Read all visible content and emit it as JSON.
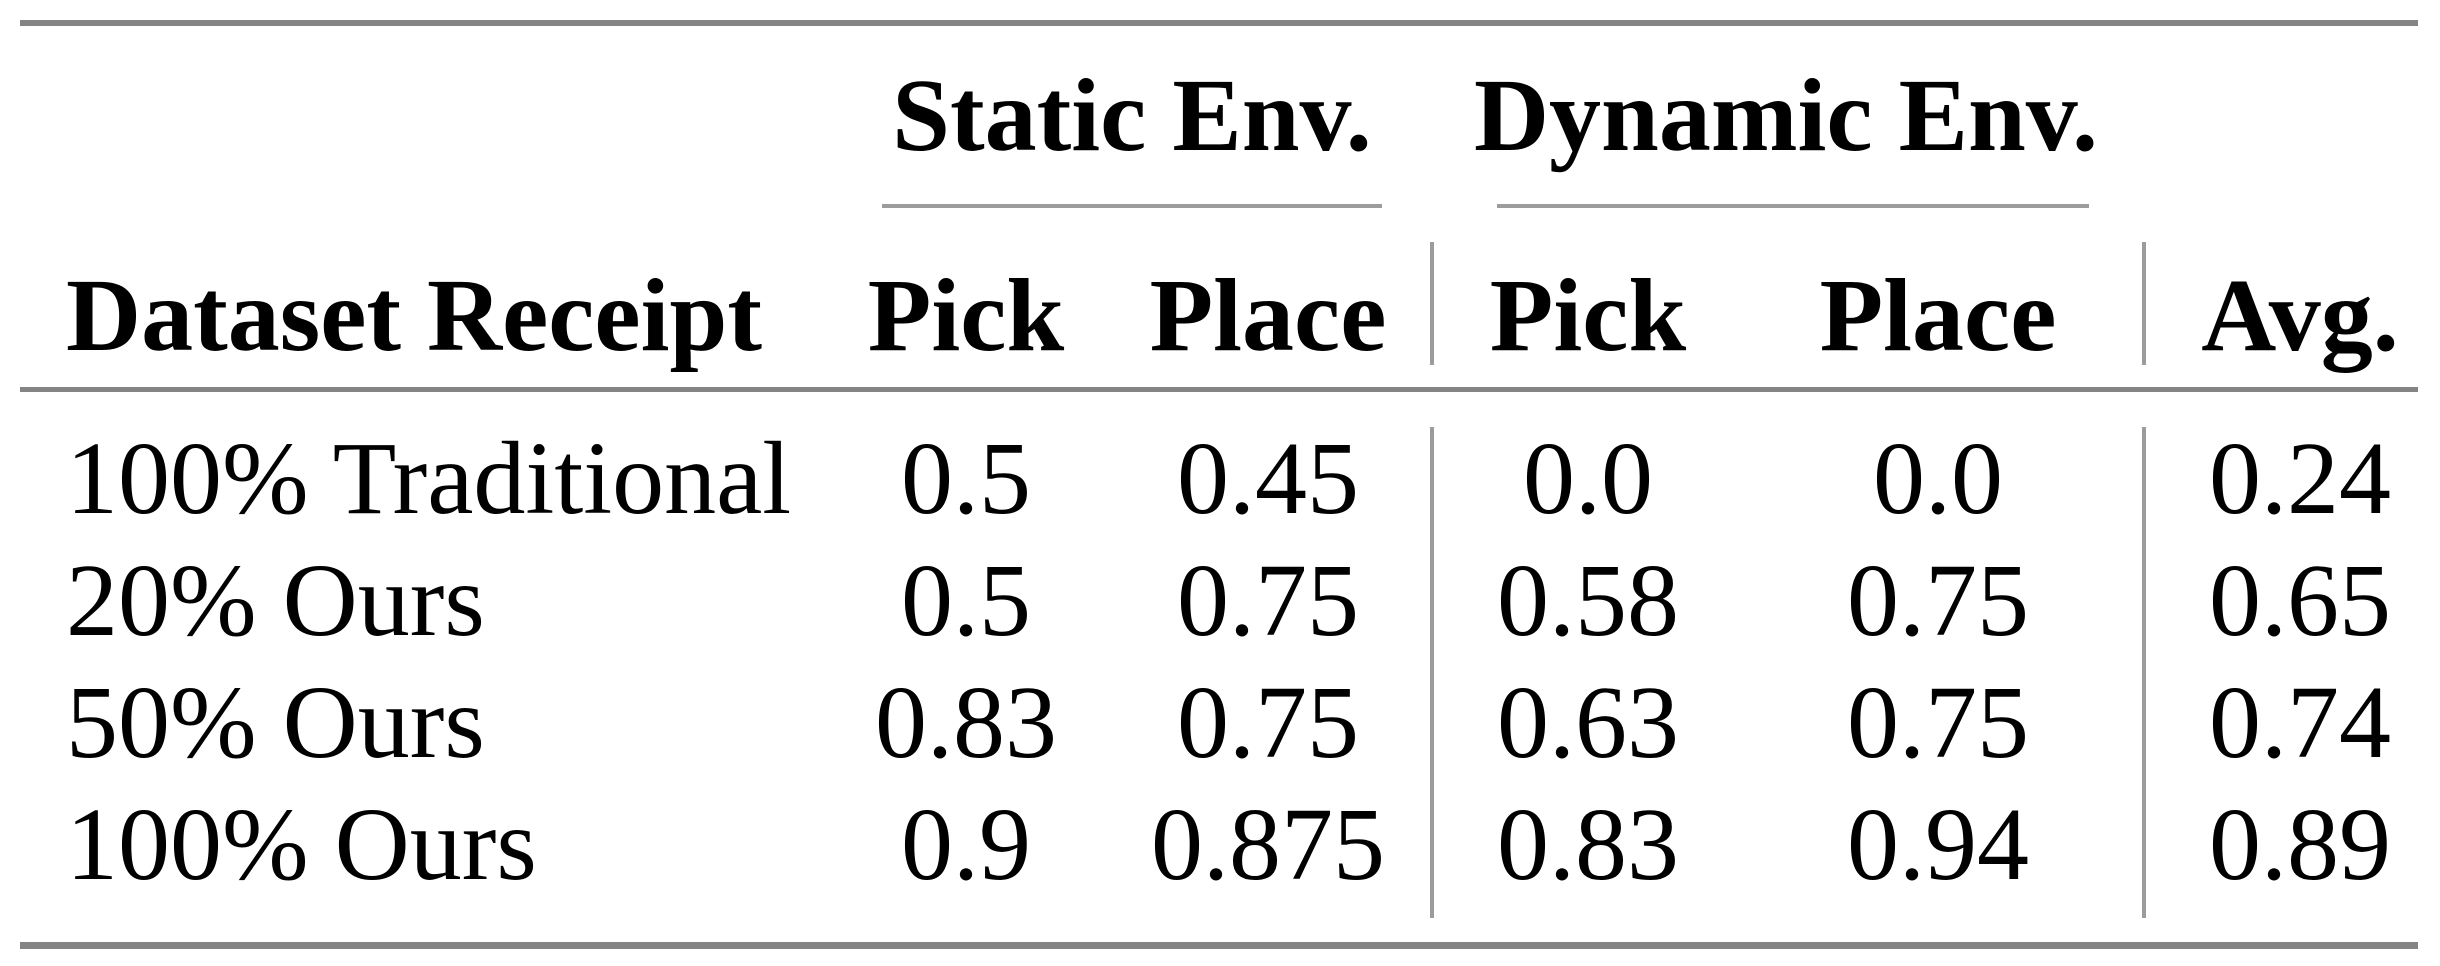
{
  "colors": {
    "background": "#ffffff",
    "text": "#000000",
    "heavy_rule": "#848484",
    "light_rule": "#9c9c9c"
  },
  "table": {
    "group_headers": [
      {
        "label": "Static Env."
      },
      {
        "label": "Dynamic Env."
      }
    ],
    "column_headers": {
      "row_label": "Dataset Receipt",
      "static_pick": "Pick",
      "static_place": "Place",
      "dynamic_pick": "Pick",
      "dynamic_place": "Place",
      "avg": "Avg."
    },
    "rows": [
      {
        "label": "100% Traditional",
        "values": [
          "0.5",
          "0.45",
          "0.0",
          "0.0",
          "0.24"
        ]
      },
      {
        "label": "20% Ours",
        "values": [
          "0.5",
          "0.75",
          "0.58",
          "0.75",
          "0.65"
        ]
      },
      {
        "label": "50% Ours",
        "values": [
          "0.83",
          "0.75",
          "0.63",
          "0.75",
          "0.74"
        ]
      },
      {
        "label": "100% Ours",
        "values": [
          "0.9",
          "0.875",
          "0.83",
          "0.94",
          "0.89"
        ]
      }
    ]
  },
  "chart_data": {
    "type": "table",
    "columns": [
      "Dataset Receipt",
      "Static Env. Pick",
      "Static Env. Place",
      "Dynamic Env. Pick",
      "Dynamic Env. Place",
      "Avg."
    ],
    "rows": [
      [
        "100% Traditional",
        0.5,
        0.45,
        0.0,
        0.0,
        0.24
      ],
      [
        "20% Ours",
        0.5,
        0.75,
        0.58,
        0.75,
        0.65
      ],
      [
        "50% Ours",
        0.83,
        0.75,
        0.63,
        0.75,
        0.74
      ],
      [
        "100% Ours",
        0.9,
        0.875,
        0.83,
        0.94,
        0.89
      ]
    ]
  }
}
